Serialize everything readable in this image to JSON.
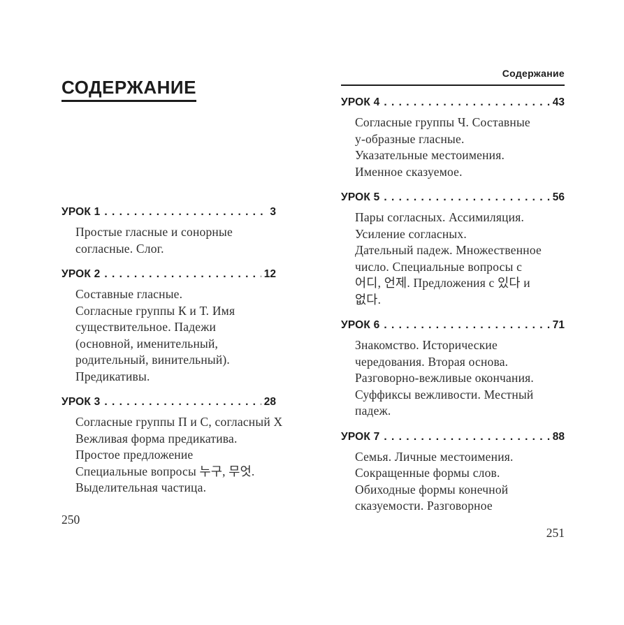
{
  "colors": {
    "background": "#ffffff",
    "heading_text": "#1c1c1c",
    "body_text": "#2e2e2e",
    "rule": "#1c1c1c"
  },
  "left_page": {
    "title": "СОДЕРЖАНИЕ",
    "page_number": "250",
    "entries": [
      {
        "label": "УРОК 1",
        "page": "3",
        "description": [
          "Простые гласные и сонорные",
          "согласные. Слог."
        ]
      },
      {
        "label": "УРОК 2",
        "page": "12",
        "description": [
          "Составные гласные.",
          "Согласные группы К и Т. Имя",
          "существительное. Падежи",
          "(основной, именительный,",
          "родительный, винительный).",
          "Предикативы."
        ]
      },
      {
        "label": "УРОК 3",
        "page": "28",
        "description": [
          "Согласные группы П и С, согласный Х",
          "Вежливая форма предикатива.",
          "Простое предложение",
          "Специальные вопросы 누구, 무엇.",
          "Выделительная частица."
        ]
      }
    ]
  },
  "right_page": {
    "running_header": "Содержание",
    "page_number": "251",
    "entries": [
      {
        "label": "УРОК 4",
        "page": "43",
        "description": [
          "Согласные группы Ч. Составные",
          "у-образные гласные.",
          "Указательные местоимения.",
          "Именное сказуемое."
        ]
      },
      {
        "label": "УРОК 5",
        "page": "56",
        "description": [
          "Пары согласных. Ассимиляция.",
          "Усиление согласных.",
          "Дательный падеж. Множественное",
          "число. Специальные вопросы с",
          "어디, 언제. Предложения с 있다 и",
          "없다."
        ]
      },
      {
        "label": "УРОК 6",
        "page": "71",
        "description": [
          "Знакомство. Исторические",
          "чередования. Вторая основа.",
          "Разговорно-вежливые окончания.",
          "Суффиксы вежливости. Местный",
          "падеж."
        ]
      },
      {
        "label": "УРОК 7",
        "page": "88",
        "description": [
          "Семья. Личные местоимения.",
          "Сокращенные формы слов.",
          "Обиходные формы конечной",
          "сказуемости. Разговорное"
        ]
      }
    ]
  }
}
